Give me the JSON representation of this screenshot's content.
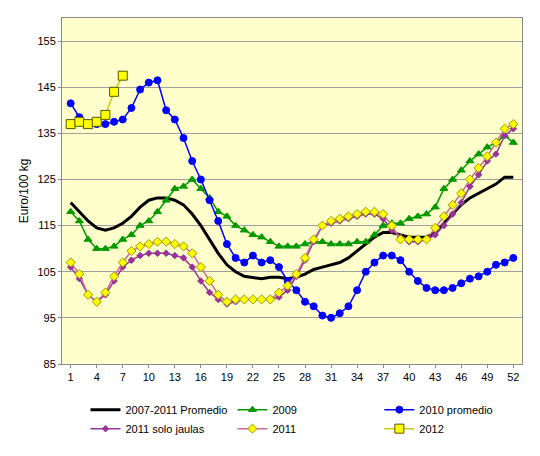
{
  "chart_data": {
    "type": "line",
    "y_label": "Euro/100 kg",
    "x": [
      1,
      2,
      3,
      4,
      5,
      6,
      7,
      8,
      9,
      10,
      11,
      12,
      13,
      14,
      15,
      16,
      17,
      18,
      19,
      20,
      21,
      22,
      23,
      24,
      25,
      26,
      27,
      28,
      29,
      30,
      31,
      32,
      33,
      34,
      35,
      36,
      37,
      38,
      39,
      40,
      41,
      42,
      43,
      44,
      45,
      46,
      47,
      48,
      49,
      50,
      51,
      52
    ],
    "xlim": [
      0,
      53
    ],
    "xticks": [
      1,
      4,
      7,
      10,
      13,
      16,
      19,
      22,
      25,
      28,
      31,
      34,
      37,
      40,
      43,
      46,
      49,
      52
    ],
    "ylim": [
      85,
      160
    ],
    "yticks": [
      85,
      95,
      105,
      115,
      125,
      135,
      145,
      155
    ],
    "grid": true,
    "legend": "bottom",
    "series": [
      {
        "name": "2007-2011 Promedio",
        "color": "#000000",
        "marker": "none",
        "line_style": "solid",
        "values": [
          120,
          118,
          116,
          114.5,
          114,
          114.5,
          115.5,
          117,
          119,
          120.5,
          121,
          121,
          120.5,
          119.5,
          117.5,
          115,
          112,
          109,
          106.5,
          105,
          104,
          103.8,
          103.5,
          103.8,
          103.8,
          103.5,
          103.8,
          104.5,
          105.5,
          106,
          106.5,
          107,
          108,
          109.5,
          111,
          112.5,
          113.5,
          113.5,
          113,
          112.5,
          112.5,
          112.5,
          113.5,
          115.5,
          117.5,
          119.5,
          121,
          122,
          123,
          124,
          125.5,
          125.5
        ]
      },
      {
        "name": "2009",
        "color": "#009900",
        "marker": "triangle-up",
        "line_style": "solid",
        "values": [
          118,
          116,
          112,
          110,
          110,
          110.5,
          112,
          113,
          115,
          116,
          118,
          120.5,
          123,
          123.5,
          125,
          123,
          121,
          118,
          117,
          115,
          114,
          113,
          112.5,
          111.5,
          110.5,
          110.5,
          110.5,
          111,
          111.5,
          111.5,
          111,
          111,
          111,
          111.5,
          111.5,
          113,
          115,
          115.5,
          115.5,
          116.5,
          117,
          117.5,
          119,
          123,
          125,
          127,
          129,
          130.5,
          132,
          133,
          134.5,
          133
        ]
      },
      {
        "name": "2010 promedio",
        "color": "#0000ff",
        "marker": "circle",
        "line_style": "solid",
        "values": [
          141.5,
          138.5,
          137,
          137,
          137,
          137.5,
          138,
          140.5,
          144.5,
          146,
          146.5,
          140,
          138,
          134,
          129,
          125,
          120.5,
          116,
          111,
          108,
          107,
          108.5,
          107,
          107.5,
          106,
          103,
          101,
          98.5,
          97.5,
          95.5,
          95,
          96,
          97.5,
          101,
          105,
          107,
          108.5,
          108.5,
          107.5,
          105,
          103,
          101.5,
          101,
          101,
          101.5,
          102.5,
          103.5,
          104,
          105,
          106.5,
          107,
          108
        ]
      },
      {
        "name": "2011 solo jaulas",
        "color": "#993399",
        "marker": "diamond",
        "line_style": "solid",
        "values": [
          106,
          103.5,
          100,
          98.5,
          100,
          103,
          106,
          107.5,
          108.5,
          109,
          109,
          109,
          108.5,
          108,
          106,
          103,
          100.5,
          99,
          98,
          98.5,
          99,
          99,
          99,
          99,
          99.5,
          101,
          104,
          107.5,
          111.5,
          115,
          115.5,
          116,
          116.5,
          117,
          117.5,
          117.5,
          116.5,
          114,
          112.5,
          111.5,
          111.5,
          112,
          113,
          115,
          117.5,
          120,
          123.5,
          126,
          129,
          130.5,
          134.5,
          136
        ]
      },
      {
        "name": "2011",
        "color": "#cc6699",
        "marker": "diamond",
        "line_style": "solid",
        "values": [
          107,
          104.5,
          100,
          98.5,
          100.5,
          104,
          107,
          109.5,
          110.5,
          111,
          111.5,
          111.5,
          111,
          110.5,
          109,
          106,
          103,
          100,
          98.5,
          99,
          99,
          99,
          99,
          99,
          100.5,
          102,
          104.5,
          108,
          112,
          115,
          116,
          116.5,
          117,
          117.5,
          118,
          118,
          117.5,
          115,
          112,
          112,
          112,
          112,
          114.5,
          117,
          119.5,
          122,
          125,
          127.5,
          130,
          133,
          136,
          137
        ]
      },
      {
        "name": "2012",
        "color": "#cccc00",
        "marker": "square",
        "line_style": "solid",
        "values": [
          137,
          137.5,
          137,
          137.5,
          139,
          144,
          147.5,
          null,
          null,
          null,
          null,
          null,
          null,
          null,
          null,
          null,
          null,
          null,
          null,
          null,
          null,
          null,
          null,
          null,
          null,
          null,
          null,
          null,
          null,
          null,
          null,
          null,
          null,
          null,
          null,
          null,
          null,
          null,
          null,
          null,
          null,
          null,
          null,
          null,
          null,
          null,
          null,
          null,
          null,
          null,
          null,
          null
        ]
      }
    ]
  }
}
